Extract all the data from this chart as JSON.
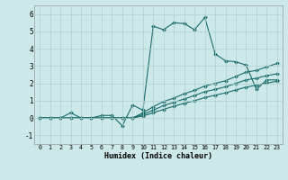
{
  "xlabel": "Humidex (Indice chaleur)",
  "xlim": [
    -0.5,
    23.5
  ],
  "ylim": [
    -1.5,
    6.5
  ],
  "xticks": [
    0,
    1,
    2,
    3,
    4,
    5,
    6,
    7,
    8,
    9,
    10,
    11,
    12,
    13,
    14,
    15,
    16,
    17,
    18,
    19,
    20,
    21,
    22,
    23
  ],
  "yticks": [
    -1,
    0,
    1,
    2,
    3,
    4,
    5,
    6
  ],
  "background_color": "#cce8e8",
  "grid_color": "#b0d0d0",
  "line_color": "#1a6b6b",
  "lines": [
    {
      "x": [
        0,
        1,
        2,
        3,
        4,
        5,
        6,
        7,
        8,
        9,
        10,
        11,
        12,
        13,
        14,
        15,
        16,
        17,
        18,
        19,
        20,
        21,
        22,
        23
      ],
      "y": [
        0.0,
        0.0,
        0.0,
        0.3,
        0.0,
        0.0,
        0.15,
        0.15,
        -0.45,
        0.75,
        0.45,
        5.3,
        5.1,
        5.5,
        5.45,
        5.1,
        5.8,
        3.7,
        3.3,
        3.25,
        3.05,
        1.65,
        2.2,
        2.2
      ]
    },
    {
      "x": [
        0,
        1,
        2,
        3,
        4,
        5,
        6,
        7,
        8,
        9,
        10,
        11,
        12,
        13,
        14,
        15,
        16,
        17,
        18,
        19,
        20,
        21,
        22,
        23
      ],
      "y": [
        0.0,
        0.0,
        0.0,
        0.0,
        0.0,
        0.0,
        0.0,
        0.0,
        0.0,
        0.0,
        0.3,
        0.65,
        0.95,
        1.15,
        1.4,
        1.6,
        1.85,
        2.0,
        2.15,
        2.4,
        2.65,
        2.75,
        2.95,
        3.15
      ]
    },
    {
      "x": [
        0,
        1,
        2,
        3,
        4,
        5,
        6,
        7,
        8,
        9,
        10,
        11,
        12,
        13,
        14,
        15,
        16,
        17,
        18,
        19,
        20,
        21,
        22,
        23
      ],
      "y": [
        0.0,
        0.0,
        0.0,
        0.0,
        0.0,
        0.0,
        0.0,
        0.0,
        0.0,
        0.0,
        0.2,
        0.45,
        0.72,
        0.9,
        1.1,
        1.3,
        1.52,
        1.65,
        1.8,
        2.0,
        2.2,
        2.3,
        2.45,
        2.55
      ]
    },
    {
      "x": [
        0,
        1,
        2,
        3,
        4,
        5,
        6,
        7,
        8,
        9,
        10,
        11,
        12,
        13,
        14,
        15,
        16,
        17,
        18,
        19,
        20,
        21,
        22,
        23
      ],
      "y": [
        0.0,
        0.0,
        0.0,
        0.0,
        0.0,
        0.0,
        0.0,
        0.0,
        0.0,
        0.0,
        0.12,
        0.3,
        0.5,
        0.68,
        0.85,
        1.0,
        1.18,
        1.32,
        1.45,
        1.62,
        1.78,
        1.9,
        2.02,
        2.12
      ]
    }
  ]
}
